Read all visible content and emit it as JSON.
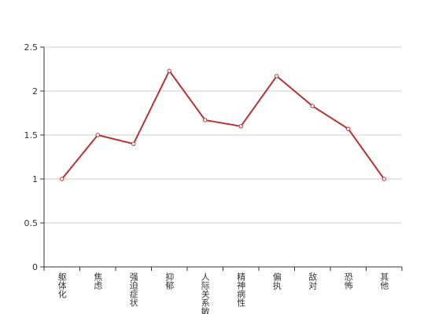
{
  "chart_data": {
    "type": "line",
    "categories": [
      "躯体化",
      "焦虑",
      "强迫症状",
      "抑郁",
      "人际关系敏感",
      "精神病性",
      "偏执",
      "敌对",
      "恐怖",
      "其他"
    ],
    "series": [
      {
        "color": "#b83232",
        "values": [
          1.0,
          1.5,
          1.4,
          2.23,
          1.67,
          1.6,
          2.17,
          1.83,
          1.57,
          1.0
        ]
      }
    ],
    "ylim": [
      0,
      2.5
    ],
    "yticks": [
      0,
      0.5,
      1,
      1.5,
      2,
      2.5
    ],
    "grid": true
  }
}
